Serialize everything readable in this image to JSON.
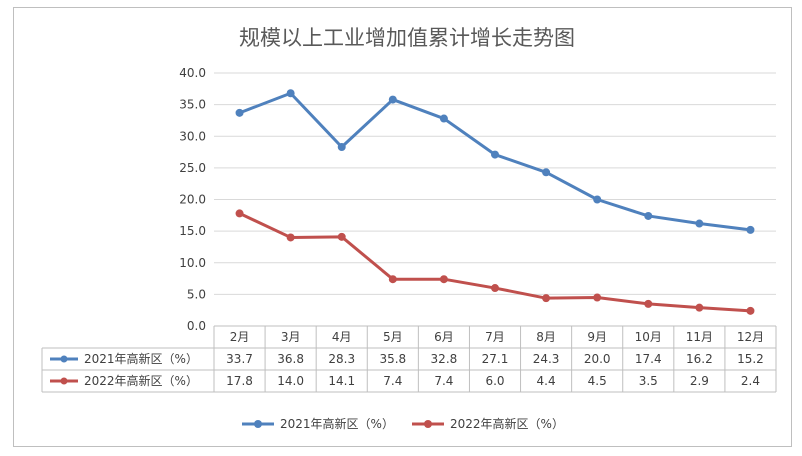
{
  "chart_data": {
    "type": "line",
    "title": "规模以上工业增加值累计增长走势图",
    "categories": [
      "2月",
      "3月",
      "4月",
      "5月",
      "6月",
      "7月",
      "8月",
      "9月",
      "10月",
      "11月",
      "12月"
    ],
    "series": [
      {
        "name": "2021年高新区（%）",
        "color": "#4f81bd",
        "values": [
          33.7,
          36.8,
          28.3,
          35.8,
          32.8,
          27.1,
          24.3,
          20.0,
          17.4,
          16.2,
          15.2
        ],
        "labels": [
          "33.7",
          "36.8",
          "28.3",
          "35.8",
          "32.8",
          "27.1",
          "24.3",
          "20.0",
          "17.4",
          "16.2",
          "15.2"
        ]
      },
      {
        "name": "2022年高新区（%）",
        "color": "#c0504d",
        "values": [
          17.8,
          14.0,
          14.1,
          7.4,
          7.4,
          6.0,
          4.4,
          4.5,
          3.5,
          2.9,
          2.4
        ],
        "labels": [
          "17.8",
          "14.0",
          "14.1",
          "7.4",
          "7.4",
          "6.0",
          "4.4",
          "4.5",
          "3.5",
          "2.9",
          "2.4"
        ]
      }
    ],
    "ylim": [
      0,
      40
    ],
    "yticks": [
      "0.0",
      "5.0",
      "10.0",
      "15.0",
      "20.0",
      "25.0",
      "30.0",
      "35.0",
      "40.0"
    ],
    "grid": true,
    "legend": "bottom",
    "data_table": true
  }
}
